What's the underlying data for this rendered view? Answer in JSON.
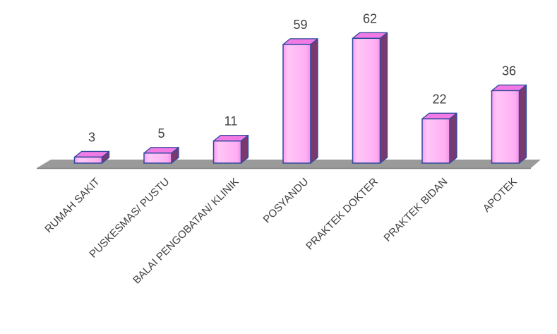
{
  "chart_data": {
    "type": "bar",
    "categories": [
      "RUMAH SAKIT",
      "PUSKESMAS/ PUSTU",
      "BALAI PENGOBATAN/ KLINIK",
      "POSYANDU",
      "PRAKTEK DOKTER",
      "PRAKTEK BIDAN",
      "APOTEK"
    ],
    "values": [
      3,
      5,
      11,
      59,
      62,
      22,
      36
    ],
    "title": "",
    "xlabel": "",
    "ylabel": "",
    "ylim": [
      0,
      62
    ],
    "grid": false,
    "legend": "none",
    "data_labels": true,
    "style": "3d-column",
    "colors": {
      "bar_front": "#ffb0f4",
      "bar_top": "#f27ae4",
      "bar_side": "#7a3a6e",
      "bar_edge": "#2e4a9e",
      "floor": "#9a9a9a",
      "text": "#404040"
    }
  }
}
